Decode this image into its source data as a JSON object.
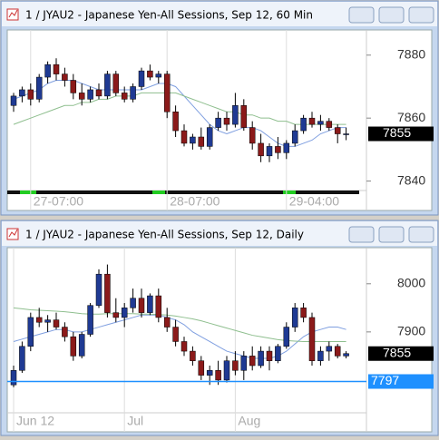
{
  "chart_data": [
    {
      "type": "candlestick",
      "title": "1 / JYAU2 - Japanese Yen-All Sessions, Sep 12, 60 Min",
      "open": [
        7864,
        7867,
        7869,
        7866,
        7873,
        7877,
        7874,
        7872,
        7868,
        7866,
        7869,
        7867,
        7874,
        7868,
        7866,
        7870,
        7875,
        7873,
        7874,
        7862,
        7856,
        7852,
        7854,
        7851,
        7857,
        7860,
        7858,
        7864,
        7857,
        7852,
        7848,
        7851,
        7849,
        7852,
        7856,
        7860,
        7858,
        7859,
        7857,
        7855
      ],
      "high": [
        7868,
        7870,
        7871,
        7874,
        7878,
        7879,
        7876,
        7874,
        7871,
        7870,
        7871,
        7875,
        7875,
        7870,
        7871,
        7876,
        7877,
        7875,
        7875,
        7864,
        7858,
        7855,
        7857,
        7858,
        7862,
        7862,
        7868,
        7866,
        7859,
        7855,
        7852,
        7854,
        7853,
        7858,
        7861,
        7862,
        7861,
        7860,
        7858,
        7857
      ],
      "low": [
        7862,
        7865,
        7864,
        7865,
        7871,
        7872,
        7870,
        7866,
        7864,
        7865,
        7866,
        7866,
        7867,
        7865,
        7865,
        7869,
        7872,
        7871,
        7860,
        7854,
        7851,
        7850,
        7850,
        7850,
        7856,
        7856,
        7857,
        7856,
        7850,
        7846,
        7846,
        7847,
        7847,
        7851,
        7855,
        7857,
        7856,
        7856,
        7852,
        7853
      ],
      "close": [
        7867,
        7869,
        7866,
        7873,
        7877,
        7874,
        7872,
        7868,
        7866,
        7869,
        7867,
        7874,
        7868,
        7866,
        7870,
        7875,
        7873,
        7874,
        7862,
        7856,
        7852,
        7854,
        7851,
        7857,
        7860,
        7858,
        7864,
        7857,
        7852,
        7848,
        7851,
        7849,
        7852,
        7856,
        7860,
        7858,
        7859,
        7857,
        7855,
        7855
      ],
      "up_color": "#1f3a93",
      "down_color": "#8b1a1a",
      "moving_averages": [
        {
          "color": "#7f9fe0",
          "values": [
            7866,
            7867,
            7868,
            7869,
            7871,
            7872,
            7872,
            7872,
            7871,
            7870,
            7869,
            7869,
            7869,
            7869,
            7869,
            7869,
            7870,
            7871,
            7871,
            7870,
            7867,
            7864,
            7861,
            7858,
            7856,
            7855,
            7856,
            7857,
            7857,
            7856,
            7854,
            7852,
            7851,
            7851,
            7852,
            7853,
            7855,
            7856,
            7857,
            7857
          ]
        },
        {
          "color": "#8fbf8f",
          "values": [
            7858,
            7859,
            7860,
            7861,
            7862,
            7863,
            7864,
            7864,
            7865,
            7865,
            7866,
            7866,
            7867,
            7867,
            7867,
            7868,
            7868,
            7868,
            7868,
            7868,
            7867,
            7866,
            7865,
            7864,
            7863,
            7862,
            7862,
            7861,
            7861,
            7860,
            7860,
            7859,
            7859,
            7858,
            7858,
            7858,
            7858,
            7858,
            7858,
            7858
          ]
        }
      ],
      "ylim": [
        7837,
        7888
      ],
      "yticks": [
        7840,
        7860,
        7880
      ],
      "xticks": [
        {
          "value": 2,
          "label": "27-07:00"
        },
        {
          "value": 18,
          "label": "28-07:00"
        },
        {
          "value": 32,
          "label": "29-04:00"
        }
      ],
      "last_price": 7855,
      "last_price_color": "#000000"
    },
    {
      "type": "candlestick",
      "title": "1 / JYAU2 - Japanese Yen-All Sessions, Sep 12, Daily",
      "open": [
        7790,
        7820,
        7870,
        7930,
        7920,
        7925,
        7910,
        7890,
        7850,
        7895,
        7955,
        8020,
        7940,
        7930,
        7950,
        7970,
        7940,
        7975,
        7930,
        7910,
        7880,
        7860,
        7840,
        7810,
        7820,
        7800,
        7840,
        7820,
        7850,
        7830,
        7860,
        7840,
        7870,
        7910,
        7950,
        7930,
        7840,
        7860,
        7870,
        7850
      ],
      "high": [
        7830,
        7880,
        7940,
        7950,
        7935,
        7940,
        7920,
        7900,
        7900,
        7960,
        8030,
        8040,
        7970,
        7960,
        7990,
        7990,
        7980,
        7990,
        7950,
        7925,
        7890,
        7870,
        7850,
        7830,
        7840,
        7850,
        7860,
        7860,
        7870,
        7870,
        7870,
        7875,
        7920,
        7960,
        7960,
        7940,
        7870,
        7880,
        7875,
        7860
      ],
      "low": [
        7785,
        7815,
        7860,
        7910,
        7900,
        7905,
        7880,
        7840,
        7845,
        7890,
        7950,
        7930,
        7920,
        7910,
        7940,
        7930,
        7935,
        7920,
        7900,
        7870,
        7850,
        7830,
        7800,
        7790,
        7790,
        7795,
        7810,
        7800,
        7820,
        7825,
        7820,
        7835,
        7865,
        7900,
        7920,
        7830,
        7830,
        7840,
        7845,
        7845
      ],
      "close": [
        7820,
        7870,
        7930,
        7920,
        7925,
        7910,
        7890,
        7850,
        7895,
        7955,
        8020,
        7940,
        7930,
        7950,
        7970,
        7940,
        7975,
        7930,
        7910,
        7880,
        7860,
        7840,
        7810,
        7820,
        7800,
        7840,
        7820,
        7850,
        7830,
        7860,
        7840,
        7870,
        7910,
        7950,
        7930,
        7840,
        7860,
        7870,
        7850,
        7855
      ],
      "up_color": "#1f3a93",
      "down_color": "#8b1a1a",
      "moving_averages": [
        {
          "color": "#7f9fe0",
          "values": [
            7880,
            7885,
            7890,
            7895,
            7900,
            7905,
            7905,
            7900,
            7900,
            7905,
            7910,
            7915,
            7920,
            7925,
            7930,
            7935,
            7935,
            7935,
            7930,
            7925,
            7915,
            7900,
            7890,
            7880,
            7870,
            7860,
            7855,
            7850,
            7845,
            7845,
            7845,
            7850,
            7860,
            7875,
            7890,
            7900,
            7905,
            7910,
            7910,
            7905
          ]
        },
        {
          "color": "#8fbf8f",
          "values": [
            7950,
            7948,
            7946,
            7945,
            7944,
            7943,
            7942,
            7940,
            7938,
            7937,
            7937,
            7938,
            7938,
            7938,
            7938,
            7937,
            7937,
            7936,
            7935,
            7933,
            7930,
            7927,
            7923,
            7918,
            7913,
            7908,
            7903,
            7898,
            7893,
            7890,
            7887,
            7884,
            7882,
            7881,
            7880,
            7880,
            7880,
            7880,
            7880,
            7880
          ]
        }
      ],
      "ylim": [
        7732,
        8075
      ],
      "yticks": [
        7900,
        8000
      ],
      "xticks": [
        {
          "value": 0,
          "label": "Jun 12"
        },
        {
          "value": 13,
          "label": "Jul"
        },
        {
          "value": 26,
          "label": "Aug"
        }
      ],
      "last_price": 7855,
      "last_price_color": "#000000",
      "hline": 7797,
      "hline_color": "#1e90ff"
    }
  ]
}
